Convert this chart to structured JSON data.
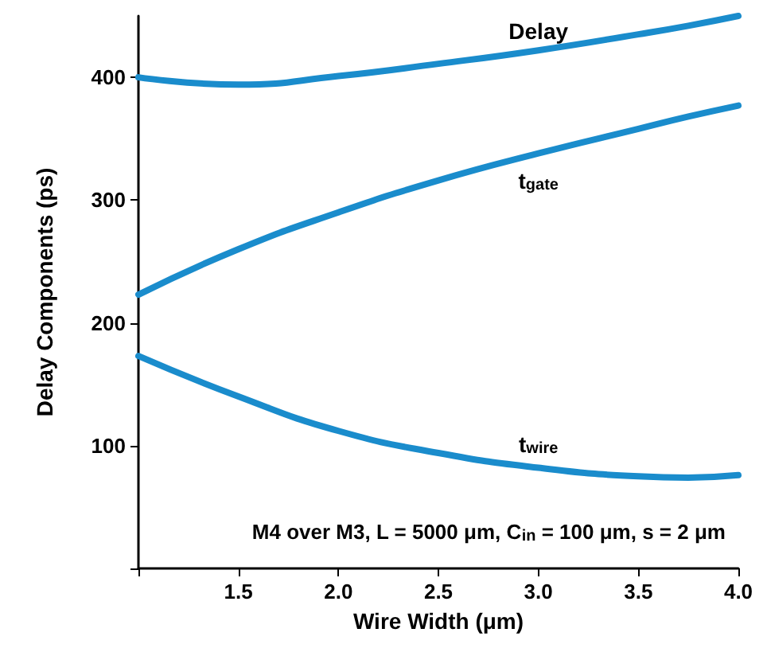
{
  "chart_data": {
    "type": "line",
    "xlabel": "Wire Width (μm)",
    "ylabel": "Delay Components (ps)",
    "x": [
      1.0,
      1.5,
      2.0,
      2.5,
      3.0,
      3.5,
      3.75,
      4.0
    ],
    "series": [
      {
        "name": "Delay",
        "color": "#1a8ccc",
        "values": [
          400,
          394,
          401,
          411,
          422,
          435,
          442,
          450
        ]
      },
      {
        "name": "t$_{gate}$",
        "color": "#1a8ccc",
        "values": [
          223,
          260,
          290,
          316,
          338,
          358,
          368,
          377
        ]
      },
      {
        "name": "t$_{wire}$",
        "color": "#1a8ccc",
        "values": [
          173,
          140,
          112,
          94,
          82,
          75,
          74,
          76
        ]
      }
    ],
    "xlim": [
      1,
      4
    ],
    "xticks": [
      {
        "value": 1,
        "label": null
      },
      1.5,
      {
        "value": 2,
        "label": "2.0"
      },
      2.5,
      {
        "value": 3,
        "label": "3.0"
      },
      3.5,
      {
        "value": 4,
        "label": "4.0"
      }
    ],
    "ylim": [
      0,
      450
    ],
    "yticks": [
      {
        "value": 0,
        "label": null
      },
      100,
      200,
      300,
      400
    ],
    "annotations": [
      "M4 over M3, L = 5000 μm, C$_{in}$ = 100 μm, s = 2 μm"
    ],
    "grid": false,
    "legend": false,
    "marker": "none",
    "line_style": "solid"
  }
}
